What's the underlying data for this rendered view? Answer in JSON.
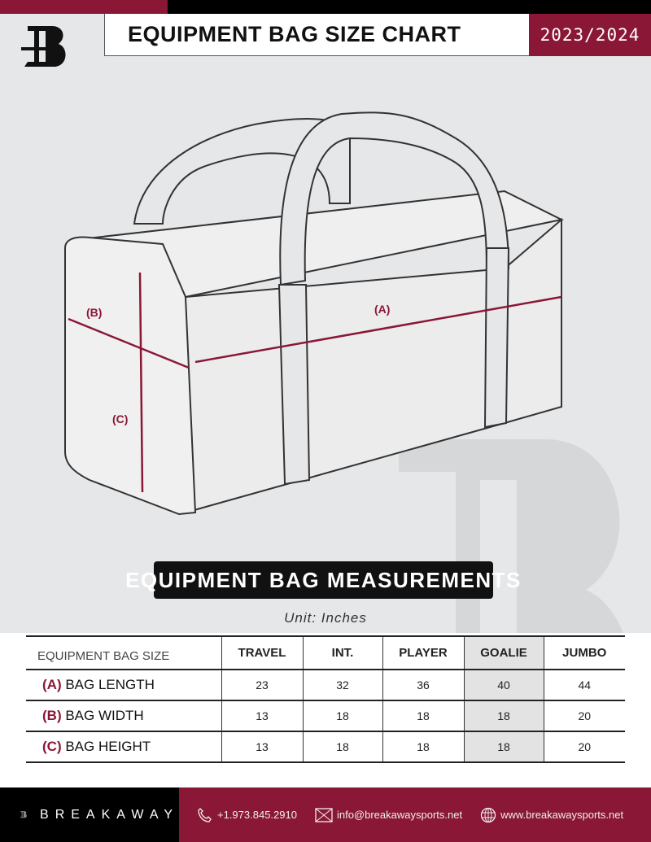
{
  "header": {
    "title": "EQUIPMENT BAG SIZE CHART",
    "season": "2023/2024",
    "logo_letter": "B"
  },
  "diagram": {
    "label_a": "(A)",
    "label_b": "(B)",
    "label_c": "(C)",
    "accent": "#8a1736"
  },
  "section_title": "EQUIPMENT BAG MEASUREMENTS",
  "unit": "Unit: Inches",
  "table": {
    "columns": [
      "EQUIPMENT BAG SIZE",
      "TRAVEL",
      "INT.",
      "PLAYER",
      "GOALIE",
      "JUMBO"
    ],
    "rows": [
      {
        "key": "(A)",
        "label": "BAG LENGTH",
        "values": [
          "23",
          "32",
          "36",
          "40",
          "44"
        ]
      },
      {
        "key": "(B)",
        "label": "BAG WIDTH",
        "values": [
          "13",
          "18",
          "18",
          "18",
          "20"
        ]
      },
      {
        "key": "(C)",
        "label": "BAG HEIGHT",
        "values": [
          "13",
          "18",
          "18",
          "18",
          "20"
        ]
      }
    ]
  },
  "footer": {
    "brand": "BREAKAWAY",
    "phone": "+1.973.845.2910",
    "email": "info@breakawaysports.net",
    "website": "www.breakawaysports.net",
    "icons": [
      "phone-icon",
      "mail-icon",
      "globe-icon"
    ]
  },
  "colors": {
    "brand": "#8a1736",
    "background": "#e6e7e8"
  }
}
